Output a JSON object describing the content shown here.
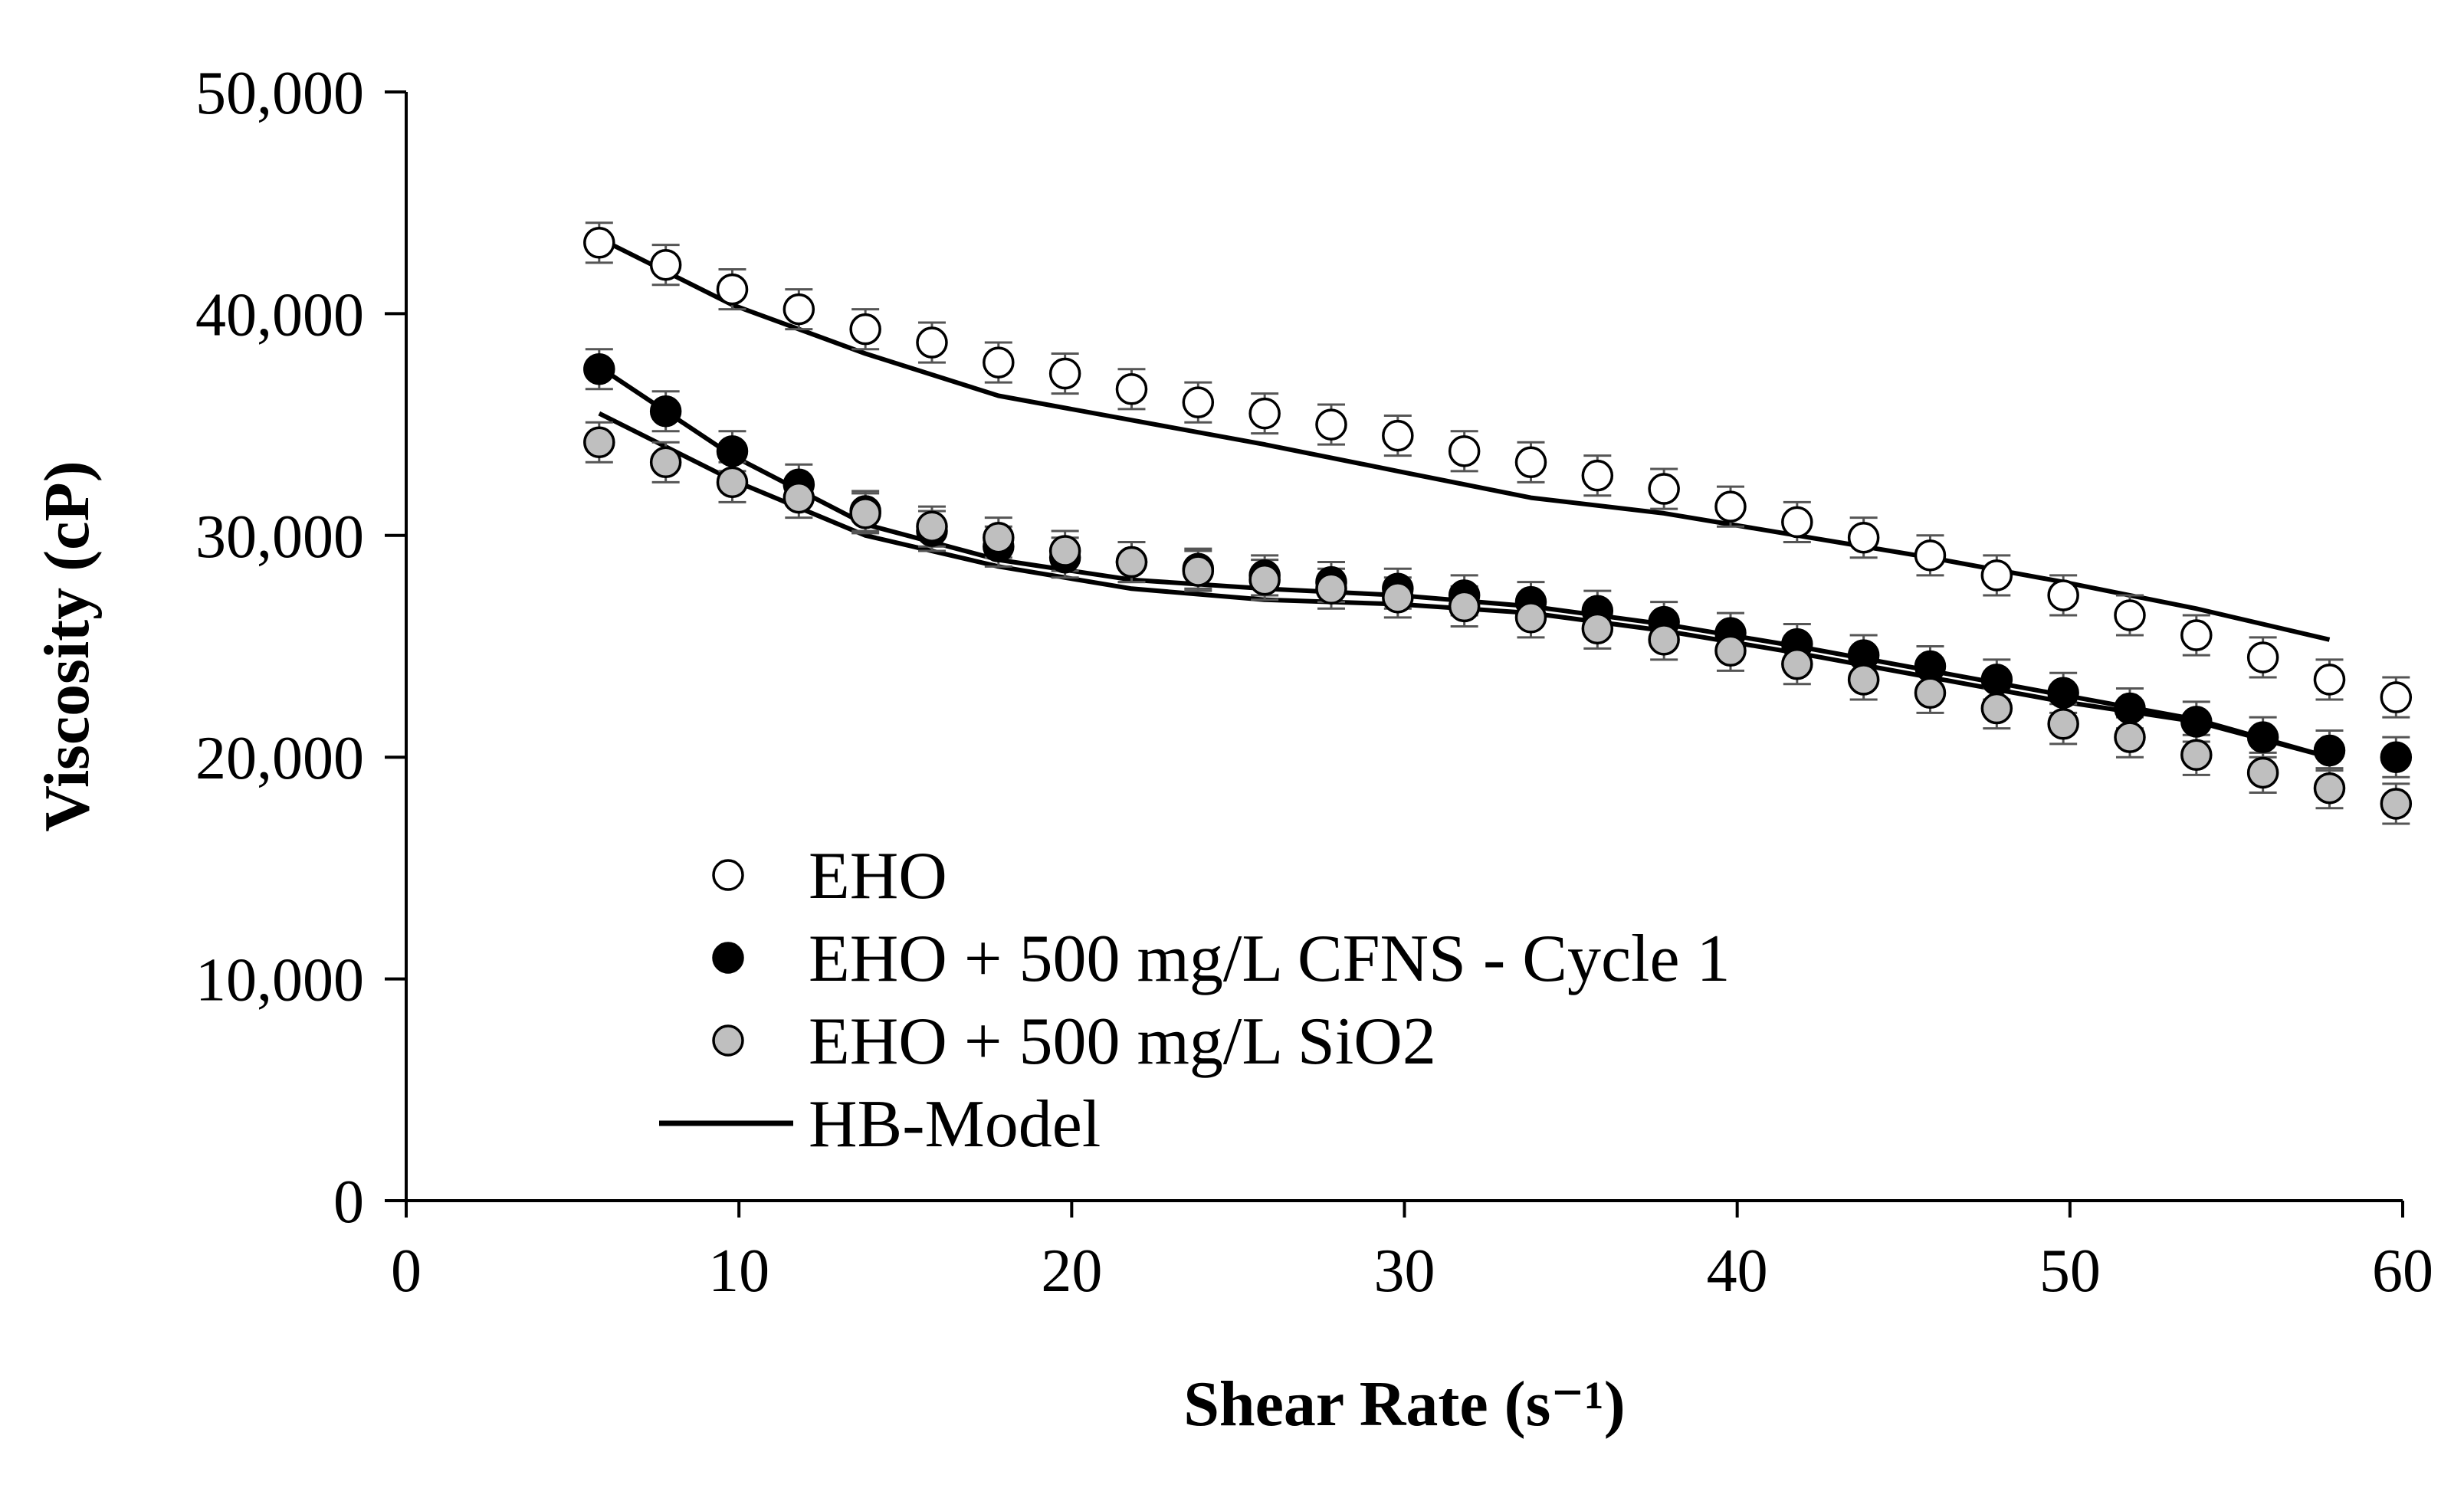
{
  "chart_data": {
    "type": "scatter",
    "title": "",
    "xlabel": "Shear Rate (s⁻¹)",
    "ylabel": "Viscosity (cP)",
    "xlim": [
      0,
      60
    ],
    "ylim": [
      0,
      50000
    ],
    "x_ticks": [
      0,
      10,
      20,
      30,
      40,
      50,
      60
    ],
    "y_ticks": [
      0,
      10000,
      20000,
      30000,
      40000,
      50000
    ],
    "x_tick_labels": [
      "0",
      "10",
      "20",
      "30",
      "40",
      "50",
      "60"
    ],
    "y_tick_labels": [
      "0",
      "10,000",
      "20,000",
      "30,000",
      "40,000",
      "50,000"
    ],
    "grid": false,
    "legend_position": "bottom-left",
    "x": [
      5.8,
      7.8,
      9.8,
      11.8,
      13.8,
      15.8,
      17.8,
      19.8,
      21.8,
      23.8,
      25.8,
      27.8,
      29.8,
      31.8,
      33.8,
      35.8,
      37.8,
      39.8,
      41.8,
      43.8,
      45.8,
      47.8,
      49.8,
      51.8,
      53.8,
      55.8,
      57.8,
      59.8
    ],
    "series": [
      {
        "name": "EHO",
        "marker": "open-circle",
        "fill": "#ffffff",
        "values": [
          43200,
          42200,
          41100,
          40200,
          39300,
          38700,
          37800,
          37300,
          36600,
          36000,
          35500,
          35000,
          34500,
          33800,
          33300,
          32700,
          32100,
          31300,
          30600,
          29900,
          29100,
          28200,
          27300,
          26400,
          25500,
          24500,
          23500,
          22700
        ],
        "error": 900
      },
      {
        "name": "EHO + 500 mg/L CFNS - Cycle 1",
        "marker": "filled-circle",
        "fill": "#000000",
        "values": [
          37500,
          35600,
          33800,
          32300,
          31100,
          30200,
          29500,
          29000,
          28800,
          28500,
          28200,
          27900,
          27600,
          27300,
          27000,
          26600,
          26100,
          25600,
          25100,
          24600,
          24100,
          23500,
          22900,
          22200,
          21600,
          20900,
          20300,
          20000
        ],
        "error": 900
      },
      {
        "name": "EHO + 500 mg/L SiO2",
        "marker": "gray-circle",
        "fill": "#bfbfbf",
        "values": [
          34200,
          33300,
          32400,
          31700,
          31000,
          30400,
          29900,
          29300,
          28800,
          28400,
          28000,
          27600,
          27200,
          26800,
          26300,
          25800,
          25300,
          24800,
          24200,
          23500,
          22900,
          22200,
          21500,
          20900,
          20100,
          19300,
          18600,
          17900
        ],
        "error": 900
      }
    ],
    "model_lines": [
      {
        "name": "HB-Model",
        "x": [
          5.8,
          9.8,
          13.8,
          17.8,
          21.8,
          25.8,
          29.8,
          33.8,
          37.8,
          41.8,
          45.8,
          49.8,
          53.8,
          57.8
        ],
        "values": [
          43400,
          40400,
          38200,
          36300,
          35200,
          34100,
          32900,
          31700,
          31000,
          30000,
          29000,
          27900,
          26700,
          25300
        ]
      },
      {
        "name": "HB-Model",
        "x": [
          5.8,
          9.8,
          13.8,
          17.8,
          21.8,
          25.8,
          29.8,
          33.8,
          37.8,
          41.8,
          45.8,
          49.8,
          53.8,
          57.8
        ],
        "values": [
          37600,
          33600,
          30500,
          28900,
          28000,
          27600,
          27300,
          26800,
          26000,
          25000,
          23900,
          22800,
          21700,
          20000
        ]
      },
      {
        "name": "HB-Model",
        "x": [
          5.8,
          9.8,
          13.8,
          17.8,
          21.8,
          25.8,
          29.8,
          33.8,
          37.8,
          41.8,
          45.8,
          49.8,
          53.8,
          57.8
        ],
        "values": [
          35500,
          32500,
          30000,
          28600,
          27600,
          27100,
          26900,
          26500,
          25700,
          24700,
          23600,
          22500,
          21600,
          20000
        ]
      }
    ],
    "legend": [
      {
        "label": "EHO",
        "marker": "open-circle"
      },
      {
        "label": "EHO + 500 mg/L CFNS - Cycle 1",
        "marker": "filled-circle"
      },
      {
        "label": "EHO + 500 mg/L SiO2",
        "marker": "gray-circle"
      },
      {
        "label": "HB-Model",
        "marker": "line"
      }
    ]
  }
}
